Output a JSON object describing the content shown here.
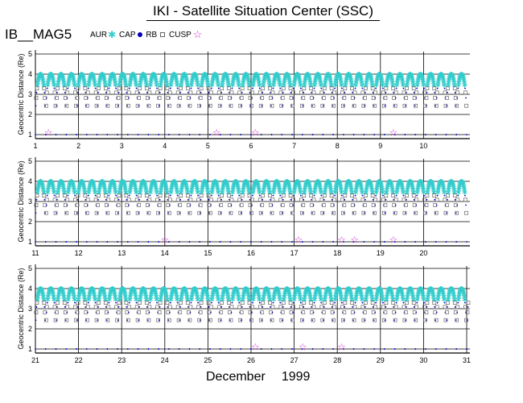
{
  "header": {
    "title": "IKI - Satellite Situation Center (SSC)",
    "satellite": "IB__MAG5"
  },
  "legend": {
    "items": [
      {
        "label": "AUR",
        "mark": "cyan-star",
        "color": "#33cccc"
      },
      {
        "label": "CAP",
        "mark": "blue-dot",
        "color": "#0000bb"
      },
      {
        "label": "RB",
        "mark": "open-square",
        "color": "#666666"
      },
      {
        "label": "CUSP",
        "mark": "magenta-star",
        "color": "#cc33cc"
      }
    ]
  },
  "footer": {
    "month": "December",
    "year": "1999"
  },
  "chart_data": {
    "type": "scatter",
    "ylabel": "Geocentric Distance (Re)",
    "ylim": [
      1,
      5
    ],
    "y_ticks": [
      1,
      2,
      3,
      4,
      5
    ],
    "grid": true,
    "panels": [
      {
        "day_ticks": [
          "1",
          "2",
          "3",
          "4",
          "5",
          "6",
          "7",
          "8",
          "9",
          "10"
        ],
        "day_start": 1,
        "cusp_days": [
          1.3,
          5.2,
          6.1,
          9.3
        ]
      },
      {
        "day_ticks": [
          "11",
          "12",
          "13",
          "14",
          "15",
          "16",
          "17",
          "18",
          "19",
          "20"
        ],
        "day_start": 11,
        "cusp_days": [
          14.0,
          17.1,
          18.1,
          18.4,
          19.3
        ]
      },
      {
        "day_ticks": [
          "21",
          "22",
          "23",
          "24",
          "25",
          "26",
          "27",
          "28",
          "29",
          "30",
          "31"
        ],
        "day_start": 21,
        "cusp_days": [
          26.1,
          27.2,
          28.1
        ]
      }
    ],
    "orbit": {
      "apogee": 4.0,
      "perigee": 1.0,
      "orbits_per_day": 4.2
    },
    "series": [
      {
        "name": "AUR",
        "color": "#33cccc",
        "y_range": [
          3.4,
          4.0
        ]
      },
      {
        "name": "CAP",
        "color": "#0000bb",
        "y_range": [
          1.2,
          4.0
        ]
      },
      {
        "name": "RB",
        "color": "#666666",
        "y_range": [
          1.1,
          3.6
        ]
      },
      {
        "name": "CUSP",
        "color": "#cc33cc",
        "y_range": [
          1.0,
          1.3
        ]
      }
    ]
  },
  "colors": {
    "grid": "#000000",
    "aur": "#33cccc",
    "cap": "#0000bb",
    "rb": "#666666",
    "cusp": "#cc33cc"
  }
}
